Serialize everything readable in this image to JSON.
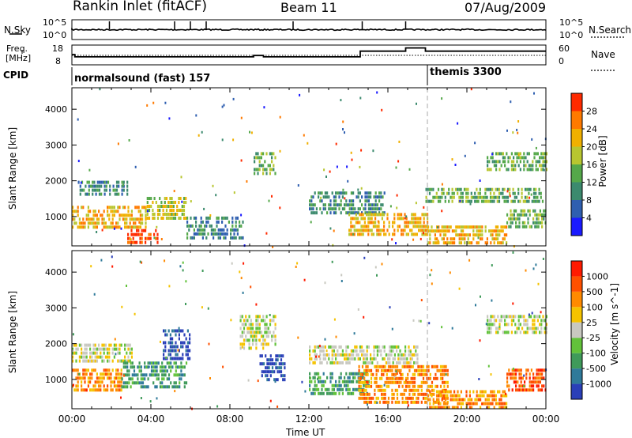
{
  "header": {
    "station": "Rankin Inlet (fitACF)",
    "beam": "Beam 11",
    "date": "07/Aug/2009"
  },
  "noise_panel": {
    "left_label": "N.Sky",
    "right_label": "N.Search",
    "left_ticks": [
      "10^5",
      "10^0"
    ],
    "right_ticks": [
      "10^5",
      "10^0"
    ]
  },
  "freq_panel": {
    "left_label_1": "Freq.",
    "left_label_2": "[MHz]",
    "right_label": "Nave",
    "left_ticks": [
      "18",
      "8"
    ],
    "right_ticks": [
      "60",
      "0"
    ],
    "freq_steps": [
      {
        "t": 0.0,
        "v": 13.0
      },
      {
        "t": 0.15,
        "v": 11.8
      },
      {
        "t": 9.2,
        "v": 12.5
      },
      {
        "t": 9.7,
        "v": 11.8
      },
      {
        "t": 14.6,
        "v": 14.8
      },
      {
        "t": 16.9,
        "v": 16.5
      },
      {
        "t": 17.9,
        "v": 14.8
      },
      {
        "t": 24.0,
        "v": 14.8
      }
    ]
  },
  "cpid": {
    "label": "CPID",
    "segments": [
      {
        "start": 0.0,
        "text": "normalsound (fast) 157"
      },
      {
        "start": 18.0,
        "text": "themis 3300"
      }
    ]
  },
  "chart_data": [
    {
      "type": "heatmap",
      "title": "Power",
      "ylabel": "Slant Range [km]",
      "ylim": [
        180,
        4600
      ],
      "xlabel": "",
      "xlim": [
        0,
        24
      ],
      "colorbar_label": "Power [dB]",
      "colorbar_ticks": [
        "4",
        "8",
        "12",
        "16",
        "20",
        "24",
        "28"
      ],
      "colors": [
        "#1a1aff",
        "#2f5fb0",
        "#3c8a6e",
        "#55a84a",
        "#b8c630",
        "#f0b000",
        "#ff7a00",
        "#ff2a00"
      ],
      "echo_regions": [
        {
          "t0": 0.0,
          "t1": 3.7,
          "r0": 700,
          "r1": 1300,
          "level": 5
        },
        {
          "t0": 0.3,
          "t1": 2.8,
          "r0": 1650,
          "r1": 2000,
          "level": 2
        },
        {
          "t0": 2.8,
          "t1": 4.3,
          "r0": 250,
          "r1": 650,
          "level": 7
        },
        {
          "t0": 3.7,
          "t1": 5.8,
          "r0": 900,
          "r1": 1550,
          "level": 4
        },
        {
          "t0": 5.8,
          "t1": 8.7,
          "r0": 400,
          "r1": 1000,
          "level": 2
        },
        {
          "t0": 9.2,
          "t1": 10.3,
          "r0": 2200,
          "r1": 2800,
          "level": 3
        },
        {
          "t0": 12.0,
          "t1": 15.8,
          "r0": 1100,
          "r1": 1700,
          "level": 2
        },
        {
          "t0": 14.0,
          "t1": 18.0,
          "r0": 500,
          "r1": 1100,
          "level": 5
        },
        {
          "t0": 17.9,
          "t1": 23.8,
          "r0": 1450,
          "r1": 1800,
          "level": 3
        },
        {
          "t0": 18.0,
          "t1": 22.0,
          "r0": 250,
          "r1": 750,
          "level": 5
        },
        {
          "t0": 21.0,
          "t1": 24.0,
          "r0": 2300,
          "r1": 2800,
          "level": 3
        },
        {
          "t0": 22.0,
          "t1": 24.0,
          "r0": 700,
          "r1": 1200,
          "level": 3
        }
      ]
    },
    {
      "type": "heatmap",
      "title": "Velocity",
      "ylabel": "Slant Range [km]",
      "ylim": [
        180,
        4600
      ],
      "xlabel": "Time UT",
      "xlim": [
        0,
        24
      ],
      "colorbar_label": "Velocity [m s^-1]",
      "colorbar_ticks": [
        "1000",
        "500",
        "100",
        "25",
        "-25",
        "-100",
        "-500",
        "-1000"
      ],
      "colors": [
        "#2a3fb8",
        "#2f7a9a",
        "#3f9a5a",
        "#62c23a",
        "#c8c8c0",
        "#f5c300",
        "#ff8a00",
        "#ff5000",
        "#ff1a00"
      ],
      "echo_regions": [
        {
          "t0": 0.0,
          "t1": 3.0,
          "r0": 1550,
          "r1": 2000,
          "level": 4
        },
        {
          "t0": 0.0,
          "t1": 2.5,
          "r0": 700,
          "r1": 1300,
          "level": 6
        },
        {
          "t0": 2.5,
          "t1": 5.8,
          "r0": 800,
          "r1": 1500,
          "level": 2
        },
        {
          "t0": 4.6,
          "t1": 6.0,
          "r0": 1600,
          "r1": 2400,
          "level": 0
        },
        {
          "t0": 8.5,
          "t1": 10.3,
          "r0": 1900,
          "r1": 2800,
          "level": 4
        },
        {
          "t0": 9.5,
          "t1": 10.8,
          "r0": 1000,
          "r1": 1700,
          "level": 0
        },
        {
          "t0": 12.0,
          "t1": 17.5,
          "r0": 1500,
          "r1": 1950,
          "level": 4
        },
        {
          "t0": 12.0,
          "t1": 15.0,
          "r0": 600,
          "r1": 1200,
          "level": 2
        },
        {
          "t0": 14.5,
          "t1": 19.0,
          "r0": 400,
          "r1": 1400,
          "level": 6
        },
        {
          "t0": 18.0,
          "t1": 22.0,
          "r0": 200,
          "r1": 700,
          "level": 6
        },
        {
          "t0": 21.0,
          "t1": 24.0,
          "r0": 2300,
          "r1": 2800,
          "level": 4
        },
        {
          "t0": 22.0,
          "t1": 24.0,
          "r0": 700,
          "r1": 1300,
          "level": 7
        }
      ]
    }
  ],
  "xticks": [
    "00:00",
    "04:00",
    "08:00",
    "12:00",
    "16:00",
    "20:00",
    "00:00"
  ],
  "yticks": [
    "1000",
    "2000",
    "3000",
    "4000"
  ]
}
